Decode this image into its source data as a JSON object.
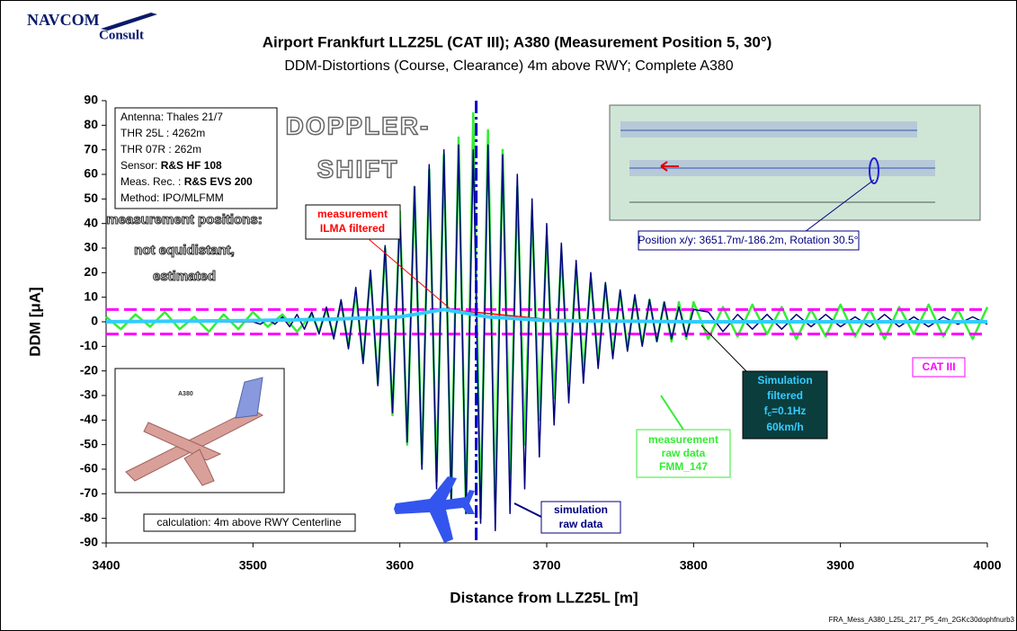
{
  "logo": [
    "NAVCOM",
    "Consult"
  ],
  "chart_data": {
    "type": "line",
    "title": "Airport Frankfurt LLZ25L (CAT III); A380 (Measurement Position 5, 30°)",
    "subtitle": "DDM-Distortions (Course, Clearance) 4m above RWY; Complete A380",
    "x_label": "Distance from LLZ25L [m]",
    "y_label": "DDM [μA]",
    "xlim": [
      3400,
      4000
    ],
    "xticks": [
      3400,
      3500,
      3600,
      3700,
      3800,
      3900,
      4000
    ],
    "ylim": [
      -90,
      90
    ],
    "yticks": [
      -90,
      -80,
      -70,
      -60,
      -50,
      -40,
      -30,
      -20,
      -10,
      0,
      10,
      20,
      30,
      40,
      50,
      60,
      70,
      80,
      90
    ],
    "limit_lines": [
      5,
      -5
    ],
    "limit_color": "#ff00ff",
    "marker_x": 3652,
    "marker_color": "#0000cc",
    "series": [
      {
        "color": "#33ee33",
        "width": 2.5,
        "x": [
          3400,
          3410,
          3420,
          3430,
          3440,
          3450,
          3460,
          3470,
          3480,
          3490,
          3500,
          3510,
          3520,
          3530,
          3540,
          3545,
          3550,
          3555,
          3560,
          3565,
          3570,
          3575,
          3580,
          3585,
          3590,
          3595,
          3600,
          3605,
          3610,
          3615,
          3620,
          3625,
          3630,
          3635,
          3640,
          3645,
          3650,
          3655,
          3660,
          3665,
          3670,
          3675,
          3680,
          3685,
          3690,
          3695,
          3700,
          3705,
          3710,
          3715,
          3720,
          3725,
          3730,
          3735,
          3740,
          3745,
          3750,
          3755,
          3760,
          3765,
          3770,
          3775,
          3780,
          3785,
          3790,
          3795,
          3800,
          3810,
          3820,
          3830,
          3840,
          3850,
          3860,
          3870,
          3880,
          3890,
          3900,
          3910,
          3920,
          3930,
          3940,
          3950,
          3960,
          3970,
          3980,
          3990,
          4000
        ],
        "values": [
          2,
          -3,
          3,
          -2,
          4,
          -3,
          2,
          -4,
          3,
          -3,
          4,
          -2,
          3,
          -4,
          3,
          -4,
          5,
          -6,
          8,
          -10,
          12,
          -16,
          20,
          -25,
          30,
          -38,
          45,
          -50,
          55,
          -58,
          62,
          -65,
          68,
          -72,
          75,
          -78,
          85,
          -80,
          78,
          -74,
          70,
          -62,
          55,
          -50,
          45,
          -40,
          35,
          -31,
          28,
          -25,
          22,
          -20,
          18,
          -16,
          15,
          -13,
          12,
          -11,
          10,
          -9,
          9,
          -8,
          8,
          -8,
          8,
          -7,
          8,
          -7,
          6,
          -6,
          7,
          -5,
          6,
          -7,
          5,
          -6,
          7,
          -6,
          5,
          -7,
          6,
          -5,
          7,
          -6,
          5,
          -7,
          6
        ]
      },
      {
        "color": "#000080",
        "width": 1.5,
        "x": [
          3400,
          3500,
          3505,
          3510,
          3515,
          3520,
          3525,
          3530,
          3535,
          3540,
          3545,
          3550,
          3555,
          3560,
          3565,
          3570,
          3575,
          3580,
          3585,
          3590,
          3595,
          3600,
          3605,
          3610,
          3615,
          3620,
          3625,
          3630,
          3635,
          3640,
          3645,
          3650,
          3655,
          3660,
          3665,
          3670,
          3675,
          3680,
          3685,
          3690,
          3695,
          3700,
          3705,
          3710,
          3715,
          3720,
          3725,
          3730,
          3735,
          3740,
          3745,
          3750,
          3755,
          3760,
          3765,
          3770,
          3775,
          3780,
          3785,
          3790,
          3795,
          3800,
          3810,
          3820,
          3830,
          3840,
          3850,
          3860,
          3870,
          3880,
          3890,
          3900,
          3910,
          3920,
          3930,
          3940,
          3950,
          3960,
          3970,
          3980,
          3990,
          4000
        ],
        "values": [
          0,
          0,
          -1,
          1,
          -1,
          2,
          -2,
          3,
          -3,
          4,
          -5,
          6,
          -7,
          9,
          -11,
          14,
          -17,
          21,
          -26,
          31,
          -37,
          43,
          -49,
          55,
          -60,
          64,
          -68,
          70,
          -74,
          72,
          -78,
          70,
          -82,
          72,
          -85,
          68,
          -78,
          60,
          -68,
          50,
          -55,
          40,
          -42,
          32,
          -33,
          25,
          -25,
          20,
          -19,
          16,
          -15,
          13,
          -12,
          11,
          -10,
          9,
          -8,
          8,
          -7,
          6,
          -6,
          5,
          4,
          -4,
          3,
          -3,
          3,
          -3,
          3,
          -2,
          3,
          -2,
          2,
          -2,
          3,
          -2,
          2,
          -2,
          2,
          -1,
          2,
          -1
        ]
      },
      {
        "color": "#ff0000",
        "width": 1.5,
        "x": [
          3400,
          3500,
          3600,
          3630,
          3650,
          3700,
          3800,
          3900,
          4000
        ],
        "values": [
          0,
          0,
          2,
          5,
          4,
          1,
          0,
          0.5,
          0
        ]
      },
      {
        "color": "#33ccff",
        "width": 4,
        "x": [
          3400,
          3500,
          3550,
          3600,
          3630,
          3640,
          3660,
          3700,
          3800,
          4000
        ],
        "values": [
          0,
          0.5,
          1,
          2,
          5,
          4,
          2,
          0.5,
          0,
          0
        ]
      }
    ]
  },
  "info_box": [
    [
      "Antenna: Thales 21/7",
      ""
    ],
    [
      "THR 25L : 4262m",
      ""
    ],
    [
      "THR 07R : 262m",
      ""
    ],
    [
      "Sensor: ",
      "R&S HF 108"
    ],
    [
      "Meas. Rec. : ",
      "R&S EVS 200"
    ],
    [
      "Method: IPO/MLFMM",
      ""
    ]
  ],
  "doppler": [
    "DOPPLER-",
    "SHIFT"
  ],
  "positions_note": [
    "measurement positions:",
    "not equidistant,",
    "estimated"
  ],
  "ilma_label": [
    "measurement",
    "ILMA filtered"
  ],
  "position_label": "Position x/y: 3651.7m/-186.2m, Rotation 30.5°",
  "cat_label": "CAT III",
  "sim_filtered_label": {
    "lines": [
      "Simulation",
      "filtered"
    ],
    "fc": [
      "f",
      "c",
      "=0.1Hz"
    ],
    "speed": "60km/h"
  },
  "raw_label": [
    "measurement",
    "raw data",
    "FMM_147"
  ],
  "sim_raw_label": [
    "simulation",
    "raw data"
  ],
  "aircraft_caption": "A380",
  "calc_label": "calculation: 4m above RWY Centerline",
  "file_name": "FRA_Mess_A380_L25L_217_P5_4m_2GKc30dophfnurb3"
}
